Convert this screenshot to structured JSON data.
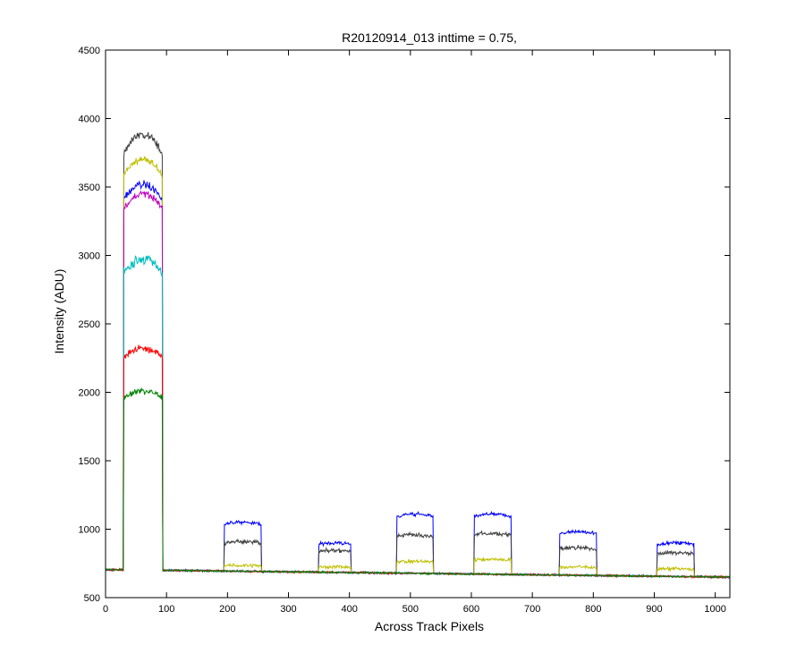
{
  "chart_data": {
    "type": "line",
    "title": "R20120914_013 inttime = 0.75,",
    "xlabel": "Across Track Pixels",
    "ylabel": "Intensity (ADU)",
    "xlim": [
      0,
      1024
    ],
    "ylim": [
      500,
      4500
    ],
    "xticks": [
      0,
      100,
      200,
      300,
      400,
      500,
      600,
      700,
      800,
      900,
      1000
    ],
    "yticks": [
      500,
      1000,
      1500,
      2000,
      2500,
      3000,
      3500,
      4000,
      4500
    ],
    "grid": false,
    "legend": "none",
    "baseline": {
      "start": 705,
      "end": 650
    },
    "blocks": [
      {
        "x0": 30,
        "x1": 93
      },
      {
        "x0": 195,
        "x1": 255
      },
      {
        "x0": 350,
        "x1": 402
      },
      {
        "x0": 478,
        "x1": 537
      },
      {
        "x0": 605,
        "x1": 665
      },
      {
        "x0": 745,
        "x1": 805
      },
      {
        "x0": 905,
        "x1": 965
      }
    ],
    "series": [
      {
        "color": "#0000ff",
        "levels": [
          3520,
          1050,
          900,
          1110,
          1110,
          980,
          900
        ],
        "noise": 40
      },
      {
        "color": "#404040",
        "levels": [
          3880,
          910,
          845,
          960,
          970,
          865,
          830
        ],
        "noise": 50
      },
      {
        "color": "#bfbf00",
        "levels": [
          3700,
          735,
          725,
          765,
          780,
          725,
          710
        ],
        "noise": 40
      },
      {
        "color": "#bf00bf",
        "levels": [
          3450,
          0,
          0,
          0,
          0,
          0,
          0
        ],
        "noise": 40
      },
      {
        "color": "#00bfbf",
        "levels": [
          2970,
          0,
          0,
          0,
          0,
          0,
          0
        ],
        "noise": 50
      },
      {
        "color": "#ff0000",
        "levels": [
          2320,
          0,
          0,
          0,
          0,
          0,
          0
        ],
        "noise": 40
      },
      {
        "color": "#008000",
        "levels": [
          2010,
          0,
          0,
          0,
          0,
          0,
          0
        ],
        "noise": 35
      }
    ]
  }
}
